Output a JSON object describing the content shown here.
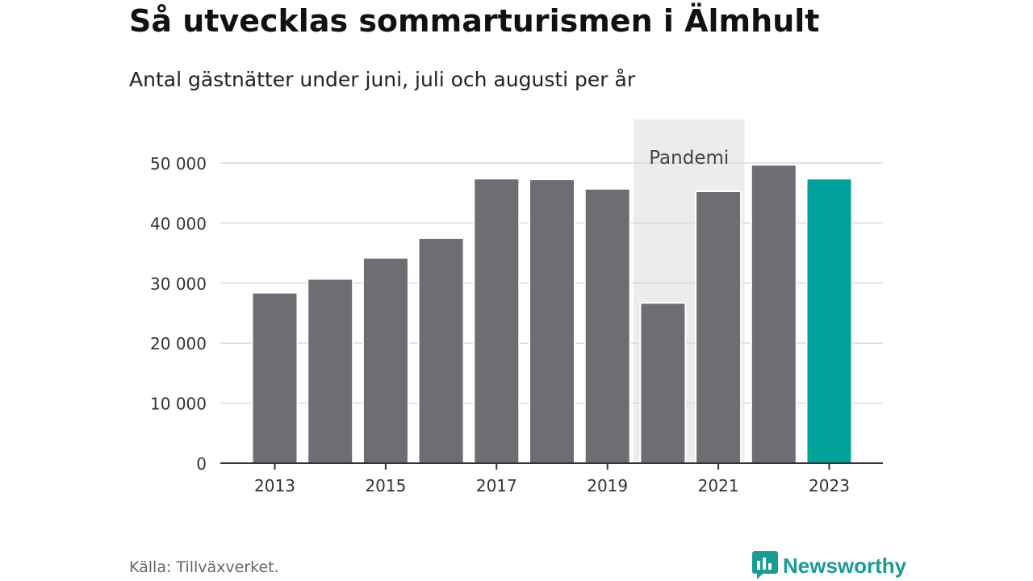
{
  "title": "Så utvecklas sommarturismen i Älmhult",
  "subtitle": "Antal gästnätter under juni, juli och augusti per år",
  "source": "Källa: Tillväxverket.",
  "brand": {
    "name": "Newsworthy",
    "logo_icon": "bar-chart-speech-bubble-icon"
  },
  "colors": {
    "bar": "#6e6d73",
    "highlight": "#00a19a",
    "shade": "#ececec",
    "brand": "#1a9b96"
  },
  "chart_data": {
    "type": "bar",
    "title": "",
    "xlabel": "",
    "ylabel": "",
    "categories": [
      "2013",
      "2014",
      "2015",
      "2016",
      "2017",
      "2018",
      "2019",
      "2020",
      "2021",
      "2022",
      "2023"
    ],
    "values": [
      28400,
      30700,
      34200,
      37500,
      47400,
      47300,
      45700,
      26700,
      45300,
      49700,
      47400
    ],
    "highlight_category": "2023",
    "ylim": [
      0,
      50000
    ],
    "yticks": [
      0,
      10000,
      20000,
      30000,
      40000,
      50000
    ],
    "ytick_labels": [
      "0",
      "10 000",
      "20 000",
      "30 000",
      "40 000",
      "50 000"
    ],
    "xtick_labels": [
      "2013",
      "2015",
      "2017",
      "2019",
      "2021",
      "2023"
    ],
    "annotation": {
      "label": "Pandemi",
      "categories": [
        "2020",
        "2021"
      ]
    },
    "grid": true,
    "legend": "none"
  }
}
